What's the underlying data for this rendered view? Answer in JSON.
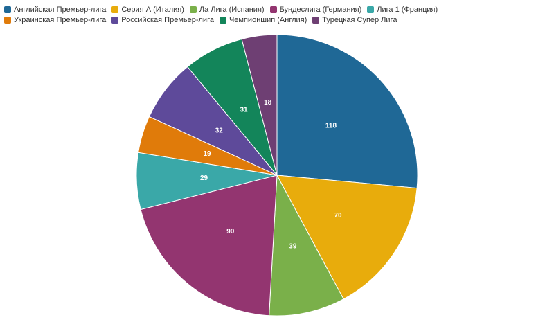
{
  "chart_data": {
    "type": "pie",
    "categories": [
      "Английская Премьер-лига",
      "Серия А (Италия)",
      "Ла Лига (Испания)",
      "Бундеслига (Германия)",
      "Лига 1 (Франция)",
      "Украинская Премьер-лига",
      "Российская Премьер-лига",
      "Чемпионшип (Англия)",
      "Турецкая Супер Лига"
    ],
    "values": [
      118,
      70,
      39,
      90,
      29,
      19,
      32,
      31,
      18
    ],
    "colors": [
      "#1f6896",
      "#e8ac0c",
      "#7ab04a",
      "#933570",
      "#3aa8a8",
      "#e07b0a",
      "#5e4a9a",
      "#13855a",
      "#6e3f73"
    ]
  }
}
